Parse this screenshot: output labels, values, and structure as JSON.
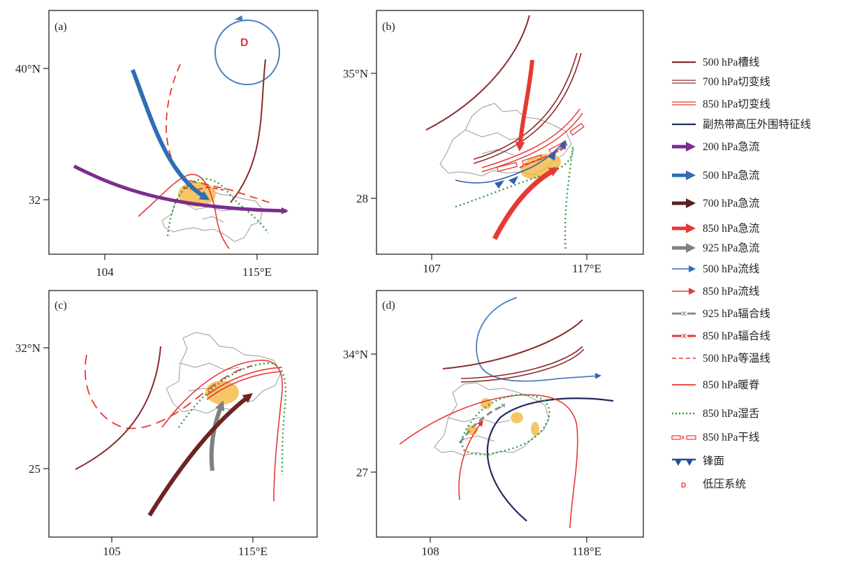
{
  "panels": [
    {
      "label": "(a)",
      "ylabels": [
        "40°N",
        "32"
      ],
      "xlabels": [
        "104",
        "115°E"
      ],
      "low_label": "D"
    },
    {
      "label": "(b)",
      "ylabels": [
        "35°N",
        "28"
      ],
      "xlabels": [
        "107",
        "117°E"
      ]
    },
    {
      "label": "(c)",
      "ylabels": [
        "32°N",
        "25"
      ],
      "xlabels": [
        "105",
        "115°E"
      ]
    },
    {
      "label": "(d)",
      "ylabels": [
        "34°N",
        "27"
      ],
      "xlabels": [
        "108",
        "118°E"
      ]
    }
  ],
  "legend": [
    {
      "text": "500 hPa槽线",
      "symbol": "single-line",
      "color": "#8b2a2a"
    },
    {
      "text": "700 hPa切变线",
      "symbol": "double-line",
      "color": "#8b2a2a"
    },
    {
      "text": "850 hPa切变线",
      "symbol": "double-line",
      "color": "#e53935"
    },
    {
      "text": "副热带高压外围特征线",
      "symbol": "single-line",
      "color": "#1f2a5c"
    },
    {
      "text": "200 hPa急流",
      "symbol": "thick-arrow",
      "color": "#7b2d8e"
    },
    {
      "text": "500 hPa急流",
      "symbol": "thick-arrow",
      "color": "#2f6db5"
    },
    {
      "text": "700 hPa急流",
      "symbol": "thick-arrow",
      "color": "#5a1f1f"
    },
    {
      "text": "850 hPa急流",
      "symbol": "thick-arrow",
      "color": "#e53935"
    },
    {
      "text": "925 hPa急流",
      "symbol": "thick-arrow",
      "color": "#808080"
    },
    {
      "text": "500 hPa流线",
      "symbol": "thin-arrow",
      "color": "#2f6db5"
    },
    {
      "text": "850 hPa流线",
      "symbol": "thin-arrow",
      "color": "#e53935"
    },
    {
      "text": "925 hPa辐合线",
      "symbol": "dash-x",
      "color": "#8a8a8a"
    },
    {
      "text": "850 hPa辐合线",
      "symbol": "dash-x",
      "color": "#e53935"
    },
    {
      "text": "500 hPa等温线",
      "symbol": "dashed",
      "color": "#e53935"
    },
    {
      "text": "850 hPa暖脊",
      "symbol": "single-line",
      "color": "#e53935"
    },
    {
      "text": "850 hPa湿舌",
      "symbol": "dotted",
      "color": "#2e9a3e"
    },
    {
      "text": "850 hPa干线",
      "symbol": "dry-line",
      "color": "#e53935"
    },
    {
      "text": "锋面",
      "symbol": "front",
      "color": "#1f4fa0"
    },
    {
      "text": "低压系统",
      "symbol": "low",
      "color": "#e53935"
    }
  ],
  "low_symbol": "D"
}
